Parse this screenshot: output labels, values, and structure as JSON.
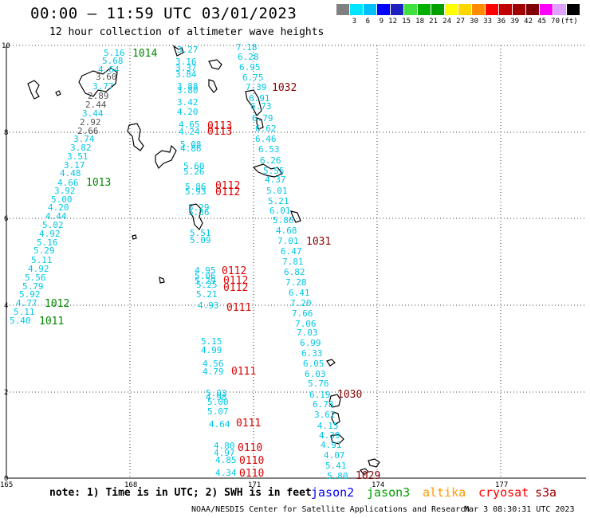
{
  "header": {
    "title": "00:00 — 11:59 UTC 03/01/2023",
    "subtitle": "12 hour collection of altimeter wave heights"
  },
  "colorbar": {
    "colors": [
      "#808080",
      "#00e5ff",
      "#00bfff",
      "#0000ff",
      "#2020c0",
      "#40e040",
      "#00b000",
      "#00a000",
      "#ffff00",
      "#ffd700",
      "#ff8c00",
      "#ff0000",
      "#c00000",
      "#a00000",
      "#800000",
      "#ff00ff",
      "#e0a0ff",
      "#000000"
    ],
    "labels": [
      "3",
      "6",
      "9",
      "12",
      "15",
      "18",
      "21",
      "24",
      "27",
      "30",
      "33",
      "36",
      "39",
      "42",
      "45",
      "70",
      "(ft)"
    ]
  },
  "map": {
    "x_ticks": [
      "165",
      "168",
      "171",
      "174",
      "177"
    ],
    "y_ticks": [
      "10",
      "8",
      "6",
      "4",
      "2",
      "0"
    ],
    "pass_colors": {
      "cyan": "#00c8e6",
      "gray": "#555555",
      "red": "#dd0000",
      "darkred": "#880000",
      "green": "#008800"
    },
    "pass_a": {
      "cyan": [
        "5.16",
        "5.68",
        "4.64",
        "3.77",
        "3.44",
        "3.74",
        "3.82",
        "3.51",
        "3.17",
        "4.48",
        "4.66",
        "3.92",
        "5.00",
        "4.20",
        "4.44",
        "5.02",
        "4.92",
        "5.16",
        "5.29",
        "5.11",
        "4.92",
        "5.56",
        "5.79",
        "5.92",
        "4.77",
        "5.11",
        "5.40"
      ],
      "gray": [
        "3.60",
        "2.89",
        "2.44",
        "2.92",
        "2.66"
      ],
      "times": [
        "1014",
        "1013",
        "1012",
        "1011"
      ]
    },
    "pass_b": {
      "cyan": [
        "3.27",
        "3.16",
        "3.37",
        "3.84",
        "3.88",
        "3.80",
        "3.42",
        "4.20",
        "4.65",
        "4.24",
        "5.08",
        "4.86",
        "5.60",
        "5.26",
        "5.86",
        "5.93",
        "5.29",
        "5.36",
        "5.51",
        "5.09",
        "4.95",
        "5.06",
        "5.29",
        "5.25",
        "5.21",
        "4.93",
        "5.15",
        "4.99",
        "4.56",
        "4.79",
        "5.03",
        "4.98",
        "5.00",
        "5.07",
        "4.64",
        "4.80",
        "4.97",
        "4.85",
        "4.34"
      ],
      "times": [
        "0113",
        "0113",
        "0112",
        "0112",
        "0112",
        "0112",
        "0112",
        "0111",
        "0111",
        "0111",
        "0110",
        "0110",
        "0110"
      ]
    },
    "pass_c": {
      "cyan": [
        "7.18",
        "6.28",
        "6.95",
        "6.75",
        "7.39",
        "6.91",
        "6.73",
        "6.79",
        "6.62",
        "6.46",
        "6.53",
        "6.26",
        "5.55",
        "4.37",
        "5.01",
        "5.21",
        "6.01",
        "5.86",
        "4.68",
        "7.01",
        "6.47",
        "7.81",
        "6.82",
        "7.28",
        "6.41",
        "7.20",
        "7.66",
        "7.06",
        "7.03",
        "6.99",
        "6.33",
        "6.05",
        "6.03",
        "5.76",
        "6.19",
        "6.78",
        "3.62",
        "4.15",
        "4.39",
        "4.91",
        "4.07",
        "5.41",
        "5.80"
      ],
      "times": [
        "1032",
        "1031",
        "1030",
        "1029"
      ]
    }
  },
  "footer": {
    "note": "note: 1) Time is in UTC; 2) SWH is in feet",
    "missions": [
      {
        "name": "jason2",
        "color": "#0000ff"
      },
      {
        "name": "jason3",
        "color": "#00a000"
      },
      {
        "name": "altika",
        "color": "#ff9900"
      },
      {
        "name": "cryosat",
        "color": "#ff0000"
      },
      {
        "name": "s3a",
        "color": "#a00000"
      }
    ],
    "credit": "NOAA/NESDIS Center for Satellite Applications and Research",
    "timestamp": "Mar  3 08:30:31 UTC 2023"
  }
}
